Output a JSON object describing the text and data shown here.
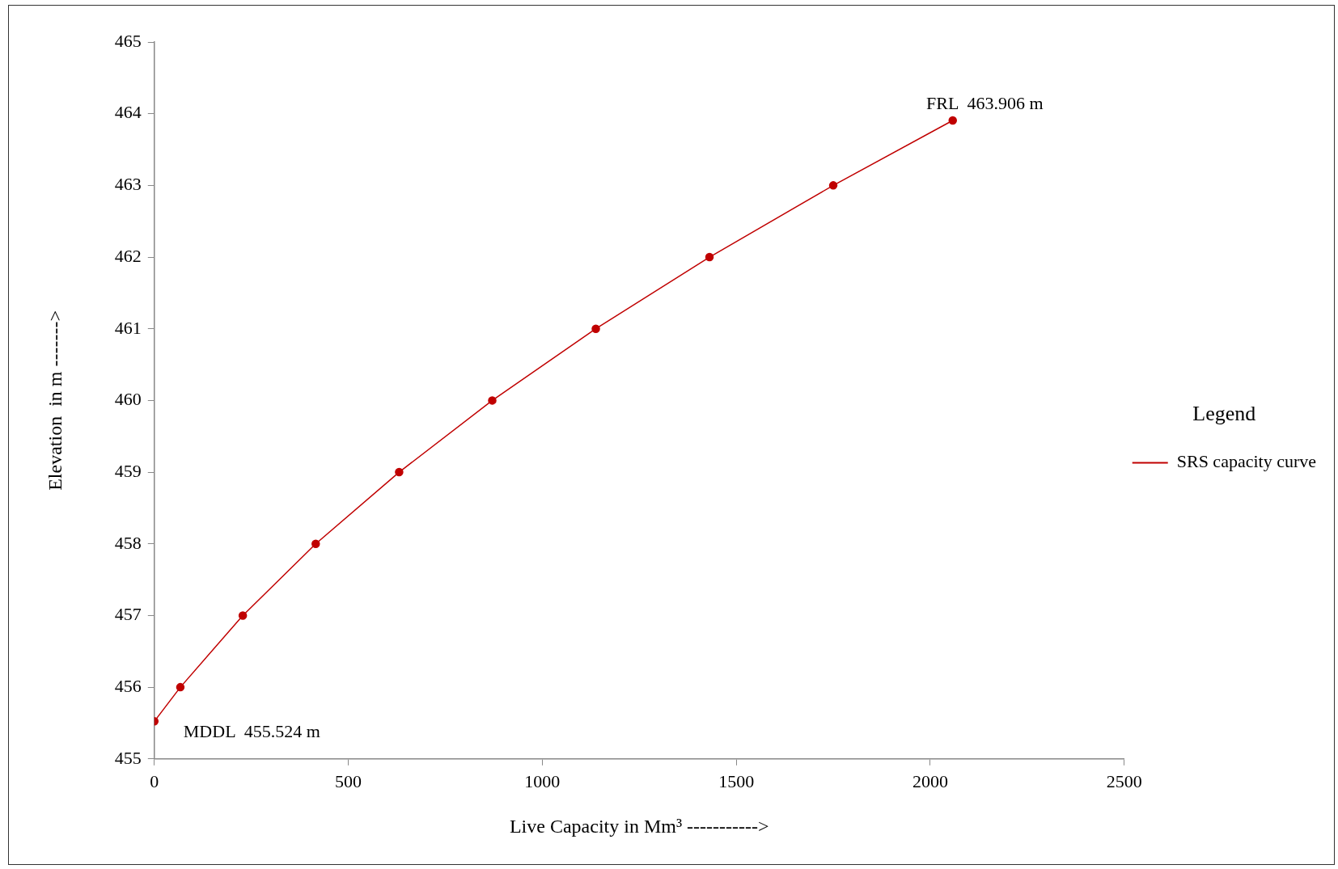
{
  "chart_data": {
    "type": "line",
    "xlabel": "Live Capacity in Mm³ ----------->",
    "ylabel": "Elevation  in m ------->",
    "legend_title": "Legend",
    "series": [
      {
        "name": "SRS capacity curve",
        "color": "#c00000",
        "x": [
          0,
          67,
          228,
          416,
          631,
          871,
          1138,
          1431,
          1750,
          2058
        ],
        "values": [
          455.524,
          456,
          457,
          458,
          459,
          460,
          461,
          462,
          463,
          463.906
        ]
      }
    ],
    "xlim": [
      0,
      2500
    ],
    "xticks": [
      0,
      500,
      1000,
      1500,
      2000,
      2500
    ],
    "ylim": [
      455,
      465
    ],
    "yticks": [
      455,
      456,
      457,
      458,
      459,
      460,
      461,
      462,
      463,
      464,
      465
    ],
    "grid": false,
    "legend": "right",
    "marker": "circle",
    "line_style": "solid",
    "annotations": [
      {
        "text": "FRL  463.906 m",
        "x": 2058,
        "y": 463.906
      },
      {
        "text": "MDDL  455.524 m",
        "x": 0,
        "y": 455.524
      }
    ]
  }
}
